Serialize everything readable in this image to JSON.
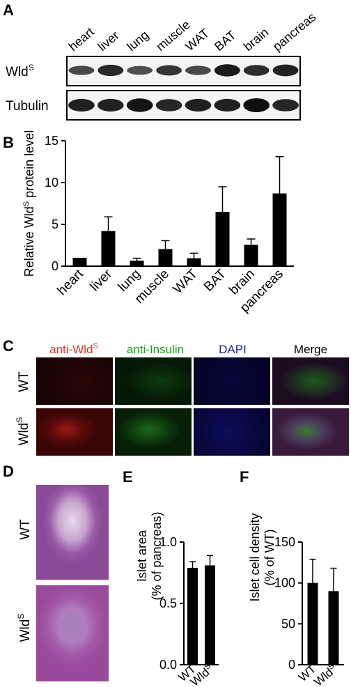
{
  "panel_a": {
    "letter": "A",
    "lanes": [
      "heart",
      "liver",
      "lung",
      "muscle",
      "WAT",
      "BAT",
      "brain",
      "pancreas"
    ],
    "row1": "Wld",
    "row1_sup": "S",
    "row2": "Tubulin",
    "wld_intensity": [
      0.6,
      0.85,
      0.55,
      0.75,
      0.6,
      0.95,
      0.8,
      0.9
    ],
    "tub_intensity": [
      0.85,
      0.85,
      0.95,
      0.8,
      0.85,
      0.85,
      1.0,
      0.8
    ]
  },
  "panel_b": {
    "letter": "B",
    "ylabel": "Relative Wld",
    "ylabel_sup": "S",
    "ylabel_suffix": " protein level"
  },
  "panel_c": {
    "letter": "C",
    "headers": [
      {
        "text": "anti-Wld",
        "sup": "S",
        "color": "#e0301e"
      },
      {
        "text": "anti-Insulin",
        "sup": "",
        "color": "#1a9a1a"
      },
      {
        "text": "DAPI",
        "sup": "",
        "color": "#1c1ca8"
      },
      {
        "text": "Merge",
        "sup": "",
        "color": "#000000"
      }
    ],
    "rows": [
      {
        "text": "WT",
        "sup": ""
      },
      {
        "text": "Wld",
        "sup": "S"
      }
    ]
  },
  "panel_d": {
    "letter": "D",
    "rows": [
      {
        "text": "WT",
        "sup": ""
      },
      {
        "text": "Wld",
        "sup": "S"
      }
    ]
  },
  "panel_e": {
    "letter": "E",
    "ylabel_line1": "Islet area",
    "ylabel_line2": "(% of pancreas)"
  },
  "panel_f": {
    "letter": "F",
    "ylabel_line1": "Islet cell density",
    "ylabel_line2": "(% of WT)"
  },
  "chart_data": [
    {
      "id": "B",
      "type": "bar",
      "categories": [
        "heart",
        "liver",
        "lung",
        "muscle",
        "WAT",
        "BAT",
        "brain",
        "pancreas"
      ],
      "series": [
        {
          "values": [
            1.0,
            4.2,
            0.65,
            2.05,
            0.95,
            6.5,
            2.55,
            8.7
          ],
          "errors": [
            0,
            1.7,
            0.3,
            1.0,
            0.6,
            3.0,
            0.7,
            4.4
          ]
        }
      ],
      "ylabel": "Relative Wld^S protein level",
      "ylim": [
        0,
        15
      ],
      "yticks": [
        0,
        5,
        10,
        15
      ],
      "color": "#000000"
    },
    {
      "id": "E",
      "type": "bar",
      "categories": [
        "WT",
        "Wld^S"
      ],
      "series": [
        {
          "values": [
            0.79,
            0.81
          ],
          "errors": [
            0.05,
            0.08
          ]
        }
      ],
      "ylabel": "Islet area (% of pancreas)",
      "ylim": [
        0,
        1.0
      ],
      "yticks": [
        0.0,
        0.5,
        1.0
      ],
      "color": "#000000"
    },
    {
      "id": "F",
      "type": "bar",
      "categories": [
        "WT",
        "Wld^S"
      ],
      "series": [
        {
          "values": [
            100,
            90
          ],
          "errors": [
            29,
            28
          ]
        }
      ],
      "ylabel": "Islet cell density (% of WT)",
      "ylim": [
        0,
        150
      ],
      "yticks": [
        0,
        50,
        100,
        150
      ],
      "color": "#000000"
    }
  ]
}
